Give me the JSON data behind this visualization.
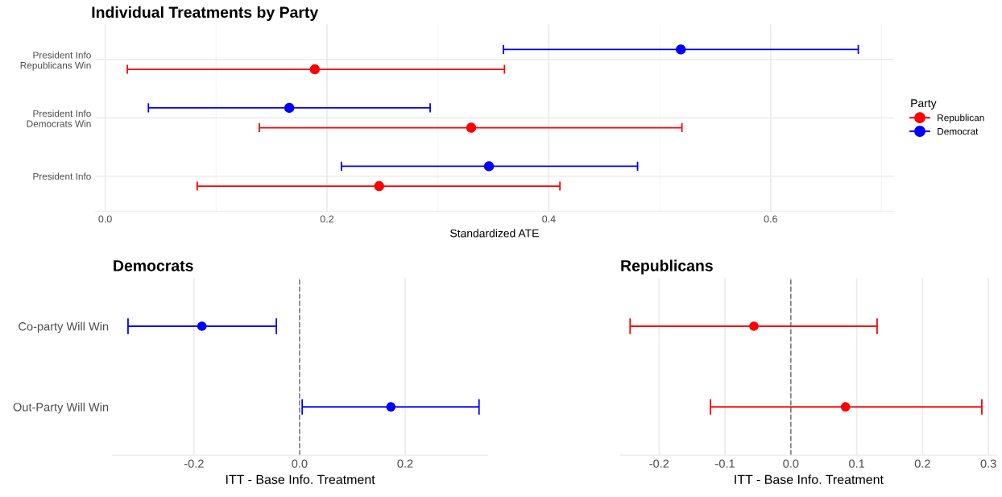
{
  "chart_data": [
    {
      "type": "scatter",
      "orientation": "horizontal",
      "title": "Individual Treatments by Party",
      "xlabel": "Standardized ATE",
      "legend_title": "Party",
      "legend": "right",
      "grid": true,
      "marker": "circle",
      "categories": [
        "President Info\nRepublicans Win",
        "President Info\nDemocrats Win",
        "President Info"
      ],
      "xlim": [
        -0.009,
        0.711
      ],
      "xticks": [
        {
          "value": 0,
          "label": "0.0"
        },
        {
          "value": 0.1,
          "label": null
        },
        0.2,
        {
          "value": 0.3,
          "label": null
        },
        0.4,
        {
          "value": 0.5,
          "label": null
        },
        0.6,
        {
          "value": 0.7,
          "label": null
        }
      ],
      "series": [
        {
          "name": "Republican",
          "color": "#ff0000",
          "values": [
            0.189,
            0.33,
            0.247
          ],
          "errors": [
            [
              0.02,
              0.36
            ],
            [
              0.139,
              0.52
            ],
            [
              0.083,
              0.41
            ]
          ]
        },
        {
          "name": "Democrat",
          "color": "#0000ff",
          "values": [
            0.519,
            0.166,
            0.346
          ],
          "errors": [
            [
              0.359,
              0.679
            ],
            [
              0.039,
              0.293
            ],
            [
              0.213,
              0.48
            ]
          ]
        }
      ]
    },
    {
      "type": "scatter",
      "orientation": "horizontal",
      "title": "Democrats",
      "xlabel": "ITT - Base Info. Treatment",
      "grid": "x",
      "marker": "circle",
      "categories": [
        "Co-party Will Win",
        "Out-Party Will Win"
      ],
      "xlim": [
        -0.354,
        0.356
      ],
      "xticks": [
        {
          "value": -0.2,
          "label": "-0.2"
        },
        {
          "value": 0,
          "label": "0.0"
        },
        0.2
      ],
      "ref_lines": [
        {
          "axis": "x",
          "value": 0,
          "color": "#808080",
          "line_style": "dashed"
        }
      ],
      "series": [
        {
          "color": "#0000ff",
          "values": [
            -0.185,
            0.173
          ],
          "errors": [
            [
              -0.325,
              -0.044
            ],
            [
              0.005,
              0.34
            ]
          ]
        }
      ]
    },
    {
      "type": "scatter",
      "orientation": "horizontal",
      "title": "Republicans",
      "xlabel": "ITT - Base Info. Treatment",
      "grid": "x",
      "marker": "circle",
      "tick_labels": "x",
      "categories": [
        null,
        null
      ],
      "xlim": [
        -0.259,
        0.313
      ],
      "xticks": [
        {
          "value": -0.2,
          "label": "-0.2"
        },
        {
          "value": -0.1,
          "label": "-0.1"
        },
        {
          "value": 0,
          "label": "0.0"
        },
        0.1,
        0.2,
        0.3
      ],
      "ref_lines": [
        {
          "axis": "x",
          "value": 0,
          "color": "#808080",
          "line_style": "dashed"
        }
      ],
      "series": [
        {
          "color": "#ff0000",
          "values": [
            -0.056,
            0.083
          ],
          "errors": [
            [
              -0.244,
              0.131
            ],
            [
              -0.122,
              0.29
            ]
          ]
        }
      ]
    }
  ]
}
